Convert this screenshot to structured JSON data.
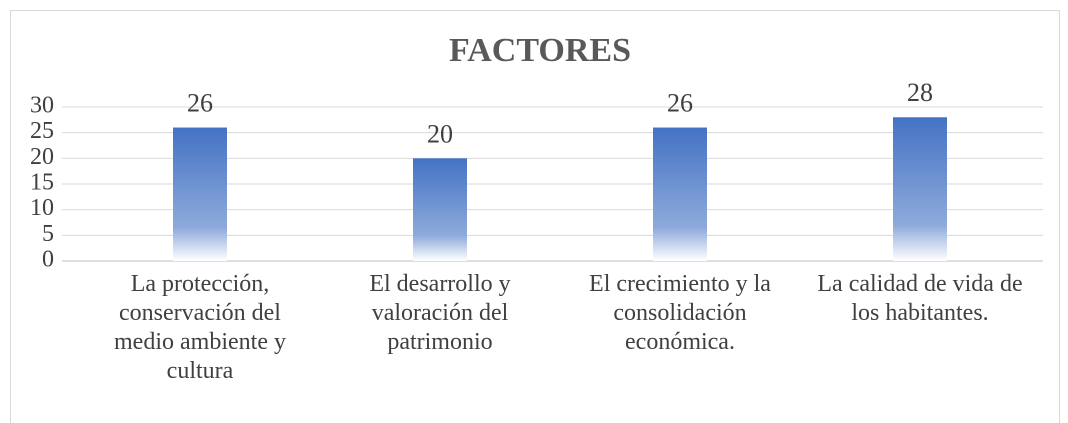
{
  "chart_data": {
    "type": "bar",
    "title": "FACTORES",
    "categories": [
      "La protección, conservación del medio ambiente y cultura",
      "El desarrollo y valoración del patrimonio",
      "El crecimiento y la consolidación económica.",
      "La calidad de vida de los habitantes."
    ],
    "values": [
      26,
      20,
      26,
      28
    ],
    "color": "#4472c4",
    "ylim": [
      0,
      30
    ],
    "yticks": [
      0,
      5,
      10,
      15,
      20,
      25,
      30
    ],
    "grid": true
  }
}
